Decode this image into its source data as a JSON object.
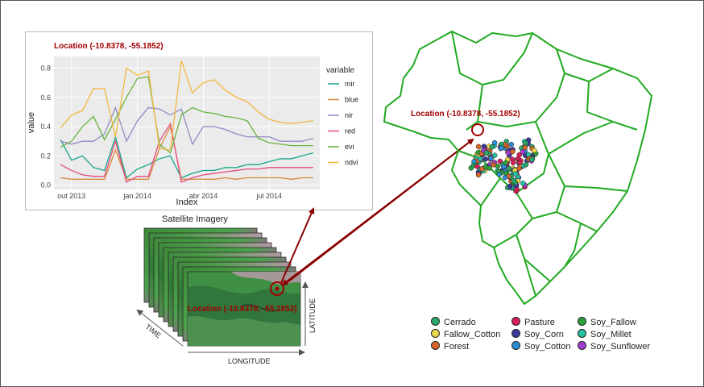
{
  "chart_data": {
    "type": "line",
    "title": "Location (-10.8378, -55.1852)",
    "xlabel": "Index",
    "ylabel": "value",
    "ylim": [
      -0.03,
      0.88
    ],
    "yticks": [
      0.0,
      0.2,
      0.4,
      0.6,
      0.8
    ],
    "ytick_labels": [
      "0.0",
      "0.2",
      "0.4",
      "0.6",
      "0.8"
    ],
    "xticks": [
      0.5,
      3.5,
      6.5,
      9.5
    ],
    "xtick_labels": [
      "out 2013",
      "jan 2014",
      "abr 2014",
      "jul 2014"
    ],
    "x": [
      0,
      0.5,
      1,
      1.5,
      2,
      2.5,
      3,
      3.5,
      4,
      4.5,
      5,
      5.5,
      6,
      6.5,
      7,
      7.5,
      8,
      8.5,
      9,
      9.5,
      10,
      10.5,
      11,
      11.5
    ],
    "legend_title": "variable",
    "legend_position": "right",
    "grid": true,
    "background": "#ebebeb",
    "series": [
      {
        "name": "mir",
        "color": "#1aa68b",
        "values": [
          0.31,
          0.17,
          0.2,
          0.12,
          0.1,
          0.33,
          0.05,
          0.11,
          0.14,
          0.18,
          0.2,
          0.05,
          0.08,
          0.1,
          0.1,
          0.12,
          0.12,
          0.14,
          0.14,
          0.16,
          0.18,
          0.18,
          0.2,
          0.22
        ]
      },
      {
        "name": "blue",
        "color": "#d98a3c",
        "values": [
          0.05,
          0.04,
          0.04,
          0.04,
          0.04,
          0.24,
          0.04,
          0.04,
          0.04,
          0.25,
          0.4,
          0.04,
          0.04,
          0.04,
          0.04,
          0.05,
          0.04,
          0.05,
          0.05,
          0.05,
          0.05,
          0.04,
          0.05,
          0.05
        ]
      },
      {
        "name": "nir",
        "color": "#8f8cc2",
        "values": [
          0.3,
          0.28,
          0.3,
          0.3,
          0.35,
          0.53,
          0.3,
          0.44,
          0.53,
          0.52,
          0.48,
          0.52,
          0.28,
          0.4,
          0.4,
          0.38,
          0.35,
          0.33,
          0.33,
          0.33,
          0.3,
          0.3,
          0.3,
          0.32
        ]
      },
      {
        "name": "red",
        "color": "#e54a7c",
        "values": [
          0.14,
          0.1,
          0.07,
          0.06,
          0.06,
          0.3,
          0.02,
          0.06,
          0.06,
          0.3,
          0.42,
          0.02,
          0.05,
          0.07,
          0.08,
          0.09,
          0.1,
          0.11,
          0.11,
          0.12,
          0.12,
          0.12,
          0.12,
          0.12
        ]
      },
      {
        "name": "evi",
        "color": "#68b33e",
        "values": [
          0.26,
          0.3,
          0.4,
          0.47,
          0.31,
          0.45,
          0.6,
          0.73,
          0.74,
          0.28,
          0.22,
          0.48,
          0.53,
          0.5,
          0.49,
          0.47,
          0.46,
          0.44,
          0.32,
          0.29,
          0.28,
          0.27,
          0.27,
          0.27
        ]
      },
      {
        "name": "ndvi",
        "color": "#f3b640",
        "values": [
          0.39,
          0.48,
          0.51,
          0.66,
          0.66,
          0.33,
          0.8,
          0.75,
          0.78,
          0.25,
          0.24,
          0.85,
          0.63,
          0.7,
          0.72,
          0.65,
          0.6,
          0.57,
          0.5,
          0.45,
          0.43,
          0.42,
          0.43,
          0.44
        ]
      }
    ]
  },
  "satellite": {
    "title": "Satellite Imagery",
    "location_label": "Location (-10.8378, -55.1852)",
    "axis_time": "TIME",
    "axis_longitude": "LONGITUDE",
    "axis_latitude": "LATITUDE"
  },
  "map": {
    "location_label": "Location (-10.8378, -55.1852)",
    "outline_color": "#22aa22",
    "legend": [
      {
        "label": "Cerrado",
        "color": "#2aa86a"
      },
      {
        "label": "Fallow_Cotton",
        "color": "#e8d84a"
      },
      {
        "label": "Forest",
        "color": "#d9662b"
      },
      {
        "label": "Pasture",
        "color": "#d81f59"
      },
      {
        "label": "Soy_Corn",
        "color": "#3b3a9a"
      },
      {
        "label": "Soy_Cotton",
        "color": "#2a8fd0"
      },
      {
        "label": "Soy_Fallow",
        "color": "#2ea23a"
      },
      {
        "label": "Soy_Millet",
        "color": "#27c2a5"
      },
      {
        "label": "Soy_Sunflower",
        "color": "#a23ed0"
      }
    ]
  },
  "colors": {
    "arrow": "#8b0000",
    "location_text": "#a00000"
  }
}
